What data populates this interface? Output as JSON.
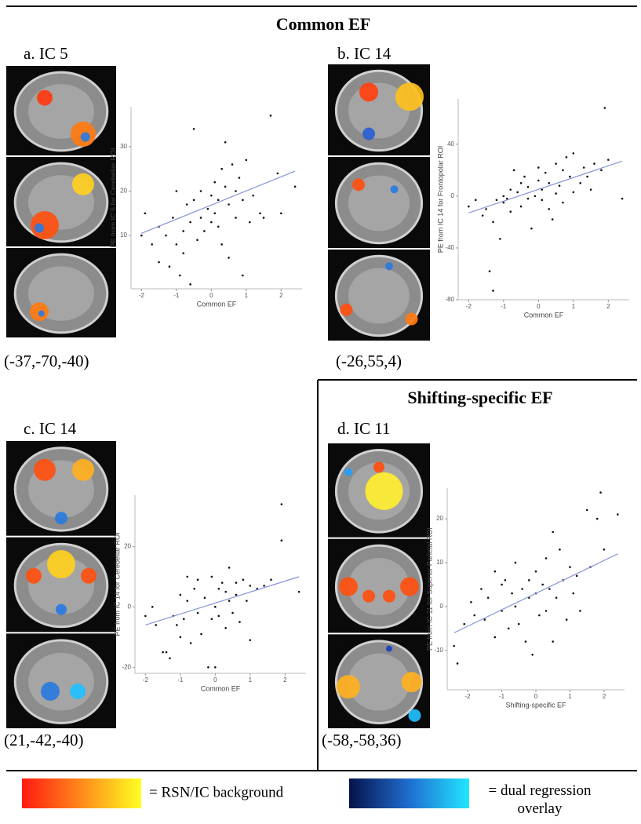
{
  "sections": [
    "Common EF",
    "Shifting-specific EF"
  ],
  "chart_data": [
    {
      "type": "scatter",
      "title": "a. IC 5",
      "annotation": "(-37,-70,-40)",
      "x_label": "Common EF",
      "y_label": "PE from IC 5 for Cerebellar ROI",
      "color": "#111111",
      "x": [
        -2,
        -1.9,
        -1.7,
        -1.5,
        -1.5,
        -1.3,
        -1.2,
        -1.1,
        -1,
        -1,
        -0.9,
        -0.8,
        -0.8,
        -0.7,
        -0.6,
        -0.6,
        -0.5,
        -0.5,
        -0.4,
        -0.3,
        -0.3,
        -0.2,
        -0.1,
        0,
        0,
        0.1,
        0.1,
        0.2,
        0.2,
        0.3,
        0.3,
        0.4,
        0.4,
        0.5,
        0.5,
        0.6,
        0.7,
        0.7,
        0.8,
        0.9,
        0.9,
        1,
        1.1,
        1.2,
        1.4,
        1.5,
        1.7,
        1.9,
        2,
        2.4
      ],
      "values": [
        10,
        15,
        8,
        4,
        12,
        10,
        3,
        14,
        20,
        8,
        1,
        6,
        11,
        17,
        13,
        -1,
        34,
        18,
        9,
        14,
        20,
        11,
        16,
        13,
        19,
        22,
        15,
        18,
        12,
        8,
        25,
        31,
        21,
        17,
        5,
        26,
        20,
        14,
        23,
        1,
        18,
        27,
        13,
        19,
        15,
        14,
        37,
        24,
        15,
        21
      ],
      "fit": {
        "color": "#8595d8",
        "x": [
          -2,
          2.4
        ],
        "values": [
          10.5,
          24.5
        ]
      },
      "xlim": [
        -2.3,
        2.6
      ],
      "ylim": [
        -2,
        39
      ],
      "xticks": [
        -2,
        -1,
        0,
        1,
        2
      ],
      "yticks": [
        10,
        20,
        30
      ]
    },
    {
      "type": "scatter",
      "title": "b. IC 14",
      "annotation": "(-26,55,4)",
      "x_label": "Common EF",
      "y_label": "PE from IC 14 for Frontopolar ROI",
      "color": "#111111",
      "x": [
        -2,
        -1.8,
        -1.6,
        -1.5,
        -1.4,
        -1.3,
        -1.3,
        -1.2,
        -1.1,
        -1,
        -1,
        -0.9,
        -0.8,
        -0.8,
        -0.7,
        -0.6,
        -0.5,
        -0.5,
        -0.4,
        -0.3,
        -0.3,
        -0.2,
        -0.1,
        0,
        0,
        0.1,
        0.1,
        0.2,
        0.3,
        0.3,
        0.4,
        0.5,
        0.5,
        0.6,
        0.7,
        0.7,
        0.8,
        0.9,
        1,
        1,
        1.2,
        1.3,
        1.4,
        1.5,
        1.6,
        1.8,
        1.9,
        2,
        2.4
      ],
      "values": [
        -8,
        -3,
        -15,
        -10,
        -58,
        -73,
        -20,
        -3,
        -33,
        0,
        -5,
        -2,
        5,
        -12,
        20,
        3,
        -8,
        10,
        15,
        -2,
        7,
        -25,
        0,
        12,
        22,
        5,
        -3,
        18,
        10,
        -10,
        -18,
        2,
        25,
        8,
        -5,
        20,
        30,
        15,
        3,
        33,
        10,
        22,
        15,
        5,
        25,
        20,
        68,
        28,
        -2
      ],
      "fit": {
        "color": "#8595d8",
        "x": [
          -2,
          2.4
        ],
        "values": [
          -13,
          27
        ]
      },
      "xlim": [
        -2.3,
        2.6
      ],
      "ylim": [
        -80,
        75
      ],
      "xticks": [
        -2,
        -1,
        0,
        1,
        2
      ],
      "yticks": [
        -80,
        -40,
        0,
        40
      ]
    },
    {
      "type": "scatter",
      "title": "c. IC 14",
      "annotation": "(21,-42,-40)",
      "x_label": "Common EF",
      "y_label": "PE from IC 14 for Cerebellar ROI",
      "color": "#111111",
      "x": [
        -2,
        -1.8,
        -1.7,
        -1.5,
        -1.4,
        -1.3,
        -1.2,
        -1.1,
        -1,
        -1,
        -0.9,
        -0.8,
        -0.8,
        -0.7,
        -0.6,
        -0.5,
        -0.5,
        -0.4,
        -0.3,
        -0.2,
        -0.1,
        -0.1,
        0,
        0,
        0.1,
        0.1,
        0.2,
        0.3,
        0.3,
        0.4,
        0.4,
        0.5,
        0.6,
        0.6,
        0.7,
        0.8,
        0.9,
        1,
        1,
        1.2,
        1.4,
        1.6,
        1.9,
        1.9,
        2.4
      ],
      "values": [
        -3,
        0,
        -6,
        -15,
        -15,
        -17,
        -3,
        -6,
        4,
        -10,
        -4,
        2,
        10,
        -12,
        6,
        -2,
        9,
        -9,
        3,
        -20,
        10,
        -4,
        0,
        -20,
        6,
        -3,
        8,
        -7,
        5,
        13,
        2,
        -2,
        8,
        4,
        -5,
        9,
        2,
        7,
        -11,
        6,
        7,
        9,
        22,
        34,
        5
      ],
      "fit": {
        "color": "#8595d8",
        "x": [
          -2,
          2.4
        ],
        "values": [
          -6,
          10
        ]
      },
      "xlim": [
        -2.3,
        2.6
      ],
      "ylim": [
        -22,
        37
      ],
      "xticks": [
        -2,
        -1,
        0,
        1,
        2
      ],
      "yticks": [
        -20,
        0,
        20
      ]
    },
    {
      "type": "scatter",
      "title": "d. IC 11",
      "annotation": "(-58,-58,36)",
      "x_label": "Shifting-specific EF",
      "y_label": "PE from IC 11 for Superior Parietal ROI",
      "color": "#111111",
      "x": [
        -2.4,
        -2.3,
        -2.1,
        -1.9,
        -1.8,
        -1.6,
        -1.5,
        -1.4,
        -1.2,
        -1.2,
        -1,
        -1,
        -0.9,
        -0.8,
        -0.7,
        -0.6,
        -0.6,
        -0.5,
        -0.4,
        -0.3,
        -0.2,
        -0.2,
        -0.1,
        0,
        0,
        0.1,
        0.2,
        0.3,
        0.3,
        0.4,
        0.5,
        0.5,
        0.6,
        0.7,
        0.8,
        0.9,
        1,
        1.1,
        1.2,
        1.3,
        1.5,
        1.6,
        1.8,
        1.9,
        2,
        2.4
      ],
      "values": [
        -9,
        -13,
        -4,
        1,
        -2,
        4,
        -3,
        2,
        8,
        -7,
        5,
        -1,
        6,
        -5,
        3,
        10,
        0,
        -4,
        4,
        -8,
        2,
        6,
        -11,
        3,
        8,
        -2,
        5,
        11,
        -1,
        4,
        17,
        -8,
        2,
        13,
        6,
        -3,
        9,
        3,
        7,
        -1,
        22,
        9,
        20,
        26,
        13,
        21
      ],
      "fit": {
        "color": "#8595d8",
        "x": [
          -2.4,
          2.4
        ],
        "values": [
          -6,
          12
        ]
      },
      "xlim": [
        -2.6,
        2.6
      ],
      "ylim": [
        -19,
        27
      ],
      "xticks": [
        -2,
        -1,
        0,
        1,
        2
      ],
      "yticks": [
        -10,
        0,
        10,
        20
      ]
    }
  ],
  "legend": [
    {
      "label": "= RSN/IC background"
    },
    {
      "label": "= dual regression overlay"
    }
  ]
}
